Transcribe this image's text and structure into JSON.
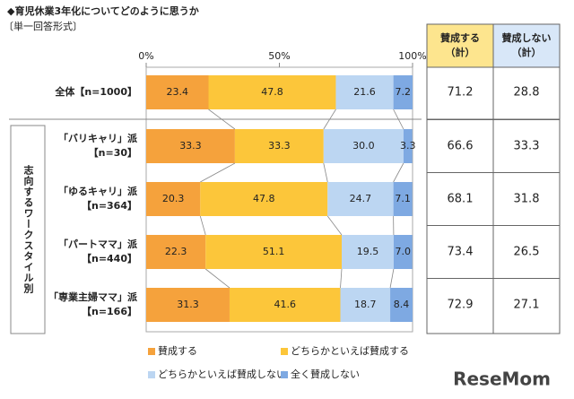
{
  "chart_data": {
    "type": "bar",
    "orientation": "horizontal",
    "stacked": true,
    "title": "◆育児休業3年化についてどのように思うか",
    "subtitle": "〔単一回答形式〕",
    "group_label": "志向するワークスタイル別",
    "categories": [
      [
        "全体【n=1000】"
      ],
      [
        "「バリキャリ」派",
        "【n=30】"
      ],
      [
        "「ゆるキャリ」派",
        "【n=364】"
      ],
      [
        "「パートママ」派",
        "【n=440】"
      ],
      [
        "「専業主婦ママ」派",
        "【n=166】"
      ]
    ],
    "xlim": [
      0,
      100
    ],
    "xticks": [
      {
        "value": 0,
        "label": "0%"
      },
      {
        "value": 50,
        "label": "50%"
      },
      {
        "value": 100,
        "label": "100%"
      }
    ],
    "series": [
      {
        "name": "賛成する",
        "color": "#f5a23c",
        "values": [
          23.4,
          33.3,
          20.3,
          22.3,
          31.3
        ],
        "value_labels": [
          "23.4",
          "33.3",
          "20.3",
          "22.3",
          "31.3"
        ]
      },
      {
        "name": "どちらかといえば賛成する",
        "color": "#fcc63a",
        "values": [
          47.8,
          33.3,
          47.8,
          51.1,
          41.6
        ],
        "value_labels": [
          "47.8",
          "33.3",
          "47.8",
          "51.1",
          "41.6"
        ]
      },
      {
        "name": "どちらかといえば賛成しない",
        "color": "#bcd6f2",
        "values": [
          21.6,
          30.0,
          24.7,
          19.5,
          18.7
        ],
        "value_labels": [
          "21.6",
          "30.0",
          "24.7",
          "19.5",
          "18.7"
        ]
      },
      {
        "name": "全く賛成しない",
        "color": "#7ea9e2",
        "values": [
          7.2,
          3.3,
          7.1,
          7.0,
          8.4
        ],
        "value_labels": [
          "7.2",
          "3.3",
          "7.1",
          "7.0",
          "8.4"
        ]
      }
    ],
    "table": {
      "headers": [
        [
          "賛成する",
          "（計）"
        ],
        [
          "賛成しない",
          "（計）"
        ]
      ],
      "header_colors": [
        "#fde58e",
        "#d8e7f8"
      ],
      "rows": [
        [
          "71.2",
          "28.8"
        ],
        [
          "66.6",
          "33.3"
        ],
        [
          "68.1",
          "31.8"
        ],
        [
          "73.4",
          "26.5"
        ],
        [
          "72.9",
          "27.1"
        ]
      ]
    },
    "watermark": "ReseMom"
  }
}
